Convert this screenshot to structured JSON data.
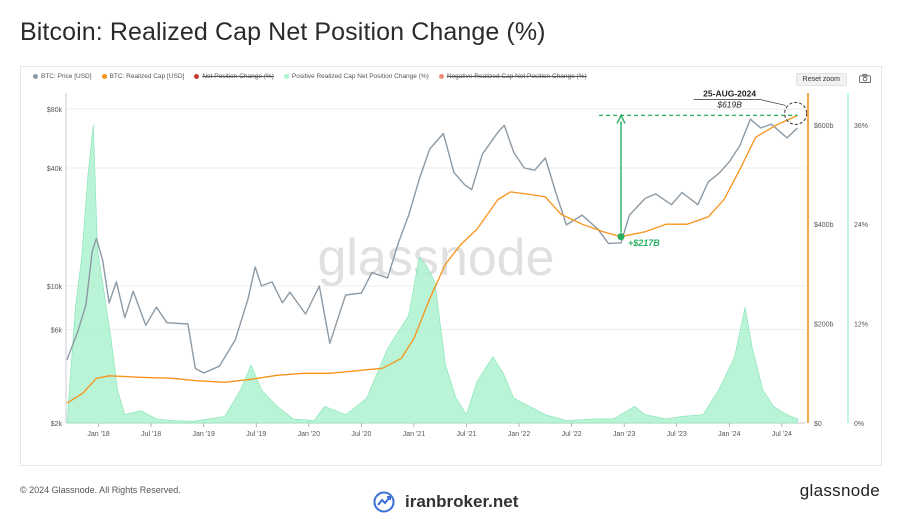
{
  "title": "Bitcoin: Realized Cap Net Position Change (%)",
  "legend": [
    {
      "label": "BTC: Price [USD]",
      "color": "#8c9aa5",
      "strike": false
    },
    {
      "label": "BTC: Realized Cap [USD]",
      "color": "#f7931a",
      "strike": false
    },
    {
      "label": "Net Position Change (%)",
      "color": "#c0392b",
      "strike": true
    },
    {
      "label": "Positive Realized Cap Net Position Change (%)",
      "color": "#aef2cf",
      "strike": false
    },
    {
      "label": "Negative Realized Cap Net Position Change (%)",
      "color": "#f08a7a",
      "strike": true
    }
  ],
  "reset_zoom": "Reset zoom",
  "footer": {
    "copyright": "© 2024 Glassnode. All Rights Reserved.",
    "logo": "glassnode",
    "brand": "iranbroker.net"
  },
  "chart_data": {
    "type": "line",
    "watermark": "glassnode",
    "x_ticks": [
      "Jan '18",
      "Jul '18",
      "Jan '19",
      "Jul '19",
      "Jan '20",
      "Jul '20",
      "Jan '21",
      "Jul '21",
      "Jan '22",
      "Jul '22",
      "Jan '23",
      "Jul '23",
      "Jan '24",
      "Jul '24"
    ],
    "y_left_ticks": [
      "$80k",
      "$40k",
      "$10k",
      "$6k",
      "$2k"
    ],
    "y_right_cap_ticks": [
      "$600b",
      "$400b",
      "$200b",
      "$0"
    ],
    "y_right_pct_ticks": [
      "36%",
      "24%",
      "12%",
      "0%"
    ],
    "y_right_cap_lim": [
      0,
      600
    ],
    "y_right_pct_lim": [
      0,
      36
    ],
    "annotations": {
      "date_label": "25-AUG-2024",
      "value_label": "$619B",
      "delta_label": "+$217B"
    },
    "series": [
      {
        "name": "BTC: Price [USD]",
        "color": "#8c9aa5",
        "values": [
          [
            2017.7,
            4200
          ],
          [
            2017.8,
            5800
          ],
          [
            2017.88,
            8000
          ],
          [
            2017.94,
            15000
          ],
          [
            2017.98,
            17500
          ],
          [
            2018.04,
            13500
          ],
          [
            2018.1,
            8200
          ],
          [
            2018.17,
            10500
          ],
          [
            2018.25,
            6900
          ],
          [
            2018.33,
            9400
          ],
          [
            2018.45,
            6300
          ],
          [
            2018.55,
            7800
          ],
          [
            2018.65,
            6500
          ],
          [
            2018.85,
            6400
          ],
          [
            2018.92,
            3800
          ],
          [
            2019.0,
            3600
          ],
          [
            2019.15,
            3900
          ],
          [
            2019.3,
            5300
          ],
          [
            2019.42,
            8500
          ],
          [
            2019.49,
            12500
          ],
          [
            2019.55,
            10000
          ],
          [
            2019.65,
            10500
          ],
          [
            2019.75,
            8200
          ],
          [
            2019.82,
            9300
          ],
          [
            2019.97,
            7200
          ],
          [
            2020.1,
            10000
          ],
          [
            2020.2,
            5100
          ],
          [
            2020.35,
            9000
          ],
          [
            2020.5,
            9200
          ],
          [
            2020.6,
            11700
          ],
          [
            2020.75,
            11000
          ],
          [
            2020.85,
            16500
          ],
          [
            2020.95,
            23000
          ],
          [
            2021.05,
            35000
          ],
          [
            2021.15,
            50000
          ],
          [
            2021.28,
            60000
          ],
          [
            2021.38,
            38000
          ],
          [
            2021.48,
            33000
          ],
          [
            2021.55,
            31000
          ],
          [
            2021.65,
            47000
          ],
          [
            2021.8,
            61000
          ],
          [
            2021.86,
            66000
          ],
          [
            2021.95,
            48000
          ],
          [
            2022.05,
            40000
          ],
          [
            2022.15,
            39000
          ],
          [
            2022.25,
            45000
          ],
          [
            2022.35,
            30000
          ],
          [
            2022.45,
            20500
          ],
          [
            2022.6,
            23000
          ],
          [
            2022.75,
            19500
          ],
          [
            2022.85,
            16500
          ],
          [
            2022.97,
            16600
          ],
          [
            2023.05,
            23000
          ],
          [
            2023.2,
            28000
          ],
          [
            2023.3,
            29500
          ],
          [
            2023.45,
            26000
          ],
          [
            2023.55,
            30000
          ],
          [
            2023.7,
            26000
          ],
          [
            2023.8,
            34000
          ],
          [
            2023.9,
            37500
          ],
          [
            2024.0,
            43000
          ],
          [
            2024.1,
            52000
          ],
          [
            2024.2,
            71000
          ],
          [
            2024.3,
            64000
          ],
          [
            2024.4,
            67000
          ],
          [
            2024.47,
            62000
          ],
          [
            2024.55,
            57000
          ],
          [
            2024.62,
            62000
          ],
          [
            2024.65,
            64000
          ]
        ]
      },
      {
        "name": "BTC: Realized Cap [USD]",
        "color": "#f7931a",
        "values": [
          [
            2017.7,
            40
          ],
          [
            2017.85,
            60
          ],
          [
            2017.98,
            90
          ],
          [
            2018.1,
            95
          ],
          [
            2018.4,
            92
          ],
          [
            2018.7,
            90
          ],
          [
            2018.95,
            85
          ],
          [
            2019.2,
            82
          ],
          [
            2019.45,
            88
          ],
          [
            2019.7,
            96
          ],
          [
            2019.95,
            100
          ],
          [
            2020.2,
            100
          ],
          [
            2020.45,
            105
          ],
          [
            2020.7,
            110
          ],
          [
            2020.88,
            130
          ],
          [
            2021.0,
            170
          ],
          [
            2021.15,
            250
          ],
          [
            2021.3,
            320
          ],
          [
            2021.45,
            360
          ],
          [
            2021.6,
            390
          ],
          [
            2021.8,
            450
          ],
          [
            2021.92,
            465
          ],
          [
            2022.1,
            460
          ],
          [
            2022.25,
            455
          ],
          [
            2022.4,
            420
          ],
          [
            2022.6,
            400
          ],
          [
            2022.8,
            385
          ],
          [
            2022.97,
            375
          ],
          [
            2023.2,
            385
          ],
          [
            2023.4,
            400
          ],
          [
            2023.6,
            400
          ],
          [
            2023.8,
            415
          ],
          [
            2023.95,
            450
          ],
          [
            2024.1,
            510
          ],
          [
            2024.25,
            575
          ],
          [
            2024.45,
            600
          ],
          [
            2024.65,
            619
          ]
        ]
      },
      {
        "name": "Positive Realized Cap Net Position Change (%)",
        "color": "#aef2cf",
        "values": [
          [
            2017.7,
            0
          ],
          [
            2017.78,
            14
          ],
          [
            2017.84,
            20
          ],
          [
            2017.9,
            30
          ],
          [
            2017.95,
            36
          ],
          [
            2017.99,
            21
          ],
          [
            2018.05,
            16
          ],
          [
            2018.12,
            10
          ],
          [
            2018.18,
            4
          ],
          [
            2018.25,
            1
          ],
          [
            2018.4,
            1.5
          ],
          [
            2018.55,
            0.5
          ],
          [
            2018.7,
            0.3
          ],
          [
            2018.9,
            0.2
          ],
          [
            2019.2,
            0.8
          ],
          [
            2019.35,
            4
          ],
          [
            2019.45,
            7
          ],
          [
            2019.55,
            4
          ],
          [
            2019.7,
            2
          ],
          [
            2019.85,
            0.5
          ],
          [
            2020.05,
            0.3
          ],
          [
            2020.15,
            2
          ],
          [
            2020.35,
            1
          ],
          [
            2020.55,
            3
          ],
          [
            2020.75,
            9
          ],
          [
            2020.95,
            13
          ],
          [
            2021.05,
            20
          ],
          [
            2021.12,
            19
          ],
          [
            2021.2,
            17
          ],
          [
            2021.3,
            7
          ],
          [
            2021.4,
            3
          ],
          [
            2021.5,
            1
          ],
          [
            2021.6,
            5
          ],
          [
            2021.75,
            8
          ],
          [
            2021.85,
            6
          ],
          [
            2021.95,
            3
          ],
          [
            2022.1,
            2
          ],
          [
            2022.25,
            1
          ],
          [
            2022.45,
            0.3
          ],
          [
            2022.7,
            0.5
          ],
          [
            2022.9,
            0.5
          ],
          [
            2023.1,
            2
          ],
          [
            2023.2,
            1
          ],
          [
            2023.4,
            0.5
          ],
          [
            2023.55,
            0.8
          ],
          [
            2023.75,
            1
          ],
          [
            2023.9,
            4
          ],
          [
            2024.05,
            8
          ],
          [
            2024.15,
            14
          ],
          [
            2024.22,
            9
          ],
          [
            2024.32,
            4
          ],
          [
            2024.42,
            2
          ],
          [
            2024.55,
            1
          ],
          [
            2024.65,
            0.5
          ]
        ]
      }
    ]
  }
}
